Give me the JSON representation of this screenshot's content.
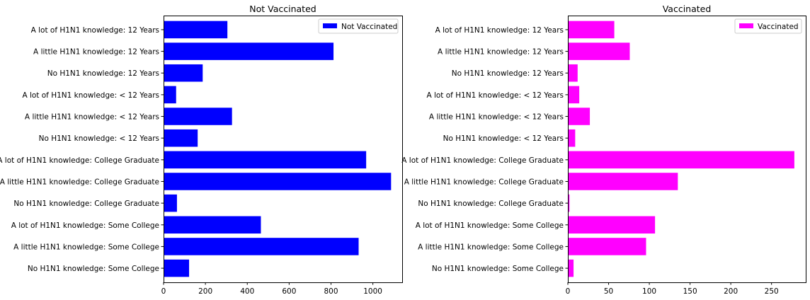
{
  "chart_data": [
    {
      "type": "bar",
      "orientation": "horizontal",
      "title": "Not Vaccinated",
      "xlabel": "",
      "ylabel": "",
      "xlim": [
        0,
        1140
      ],
      "xticks": [
        0,
        200,
        400,
        600,
        800,
        1000
      ],
      "color": "#0000ff",
      "legend": {
        "position": "top-right",
        "label": "Not Vaccinated"
      },
      "grid": false,
      "categories": [
        "A lot of H1N1 knowledge: 12 Years",
        "A little H1N1 knowledge: 12 Years",
        "No H1N1 knowledge: 12 Years",
        "A lot of H1N1 knowledge: < 12 Years",
        "A little H1N1 knowledge: < 12 Years",
        "No H1N1 knowledge: < 12 Years",
        "A lot of H1N1 knowledge: College Graduate",
        "A little H1N1 knowledge: College Graduate",
        "No H1N1 knowledge: College Graduate",
        "A lot of H1N1 knowledge: Some College",
        "A little H1N1 knowledge: Some College",
        "No H1N1 knowledge: Some College"
      ],
      "values": [
        305,
        812,
        187,
        60,
        327,
        163,
        968,
        1087,
        64,
        465,
        932,
        122
      ]
    },
    {
      "type": "bar",
      "orientation": "horizontal",
      "title": "Vaccinated",
      "xlabel": "",
      "ylabel": "",
      "xlim": [
        0,
        292
      ],
      "xticks": [
        0,
        50,
        100,
        150,
        200,
        250
      ],
      "color": "#ff00ff",
      "legend": {
        "position": "top-right",
        "label": "Vaccinated"
      },
      "grid": false,
      "categories": [
        "A lot of H1N1 knowledge: 12 Years",
        "A little H1N1 knowledge: 12 Years",
        "No H1N1 knowledge: 12 Years",
        "A lot of H1N1 knowledge: < 12 Years",
        "A little H1N1 knowledge: < 12 Years",
        "No H1N1 knowledge: < 12 Years",
        "A lot of H1N1 knowledge: College Graduate",
        "A little H1N1 knowledge: College Graduate",
        "No H1N1 knowledge: College Graduate",
        "A lot of H1N1 knowledge: Some College",
        "A little H1N1 knowledge: Some College",
        "No H1N1 knowledge: Some College"
      ],
      "values": [
        57,
        76,
        12,
        14,
        27,
        9,
        278,
        135,
        2,
        107,
        96,
        7
      ]
    }
  ]
}
